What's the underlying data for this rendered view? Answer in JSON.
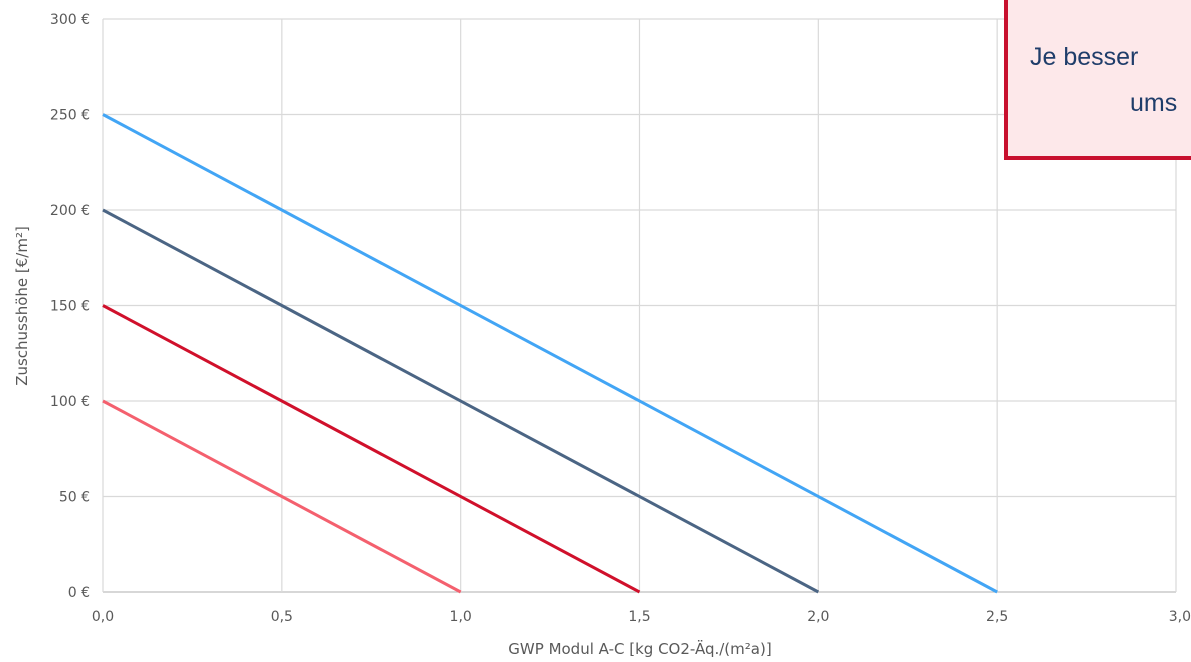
{
  "chart_data": {
    "type": "line",
    "xlabel": "GWP Modul A-C [kg CO2-Äq./(m²a)]",
    "ylabel": "Zuschusshöhe [€/m²]",
    "xlim": [
      0,
      3.0
    ],
    "ylim": [
      0,
      300
    ],
    "x_ticks": [
      "0,0",
      "0,5",
      "1,0",
      "1,5",
      "2,0",
      "2,5",
      "3,0"
    ],
    "y_ticks": [
      "0 €",
      "50 €",
      "100 €",
      "150 €",
      "200 €",
      "250 €",
      "300 €"
    ],
    "grid": true,
    "series": [
      {
        "color": "#42a5f5",
        "x": [
          0.0,
          2.5
        ],
        "y": [
          250,
          0
        ]
      },
      {
        "color": "#4b6584",
        "x": [
          0.0,
          2.0
        ],
        "y": [
          200,
          0
        ]
      },
      {
        "color": "#d0102b",
        "x": [
          0.0,
          1.5
        ],
        "y": [
          150,
          0
        ]
      },
      {
        "color": "#f4606e",
        "x": [
          0.0,
          1.0
        ],
        "y": [
          100,
          0
        ]
      }
    ]
  },
  "callout": {
    "line1": "Je besser",
    "line2": "ums"
  }
}
